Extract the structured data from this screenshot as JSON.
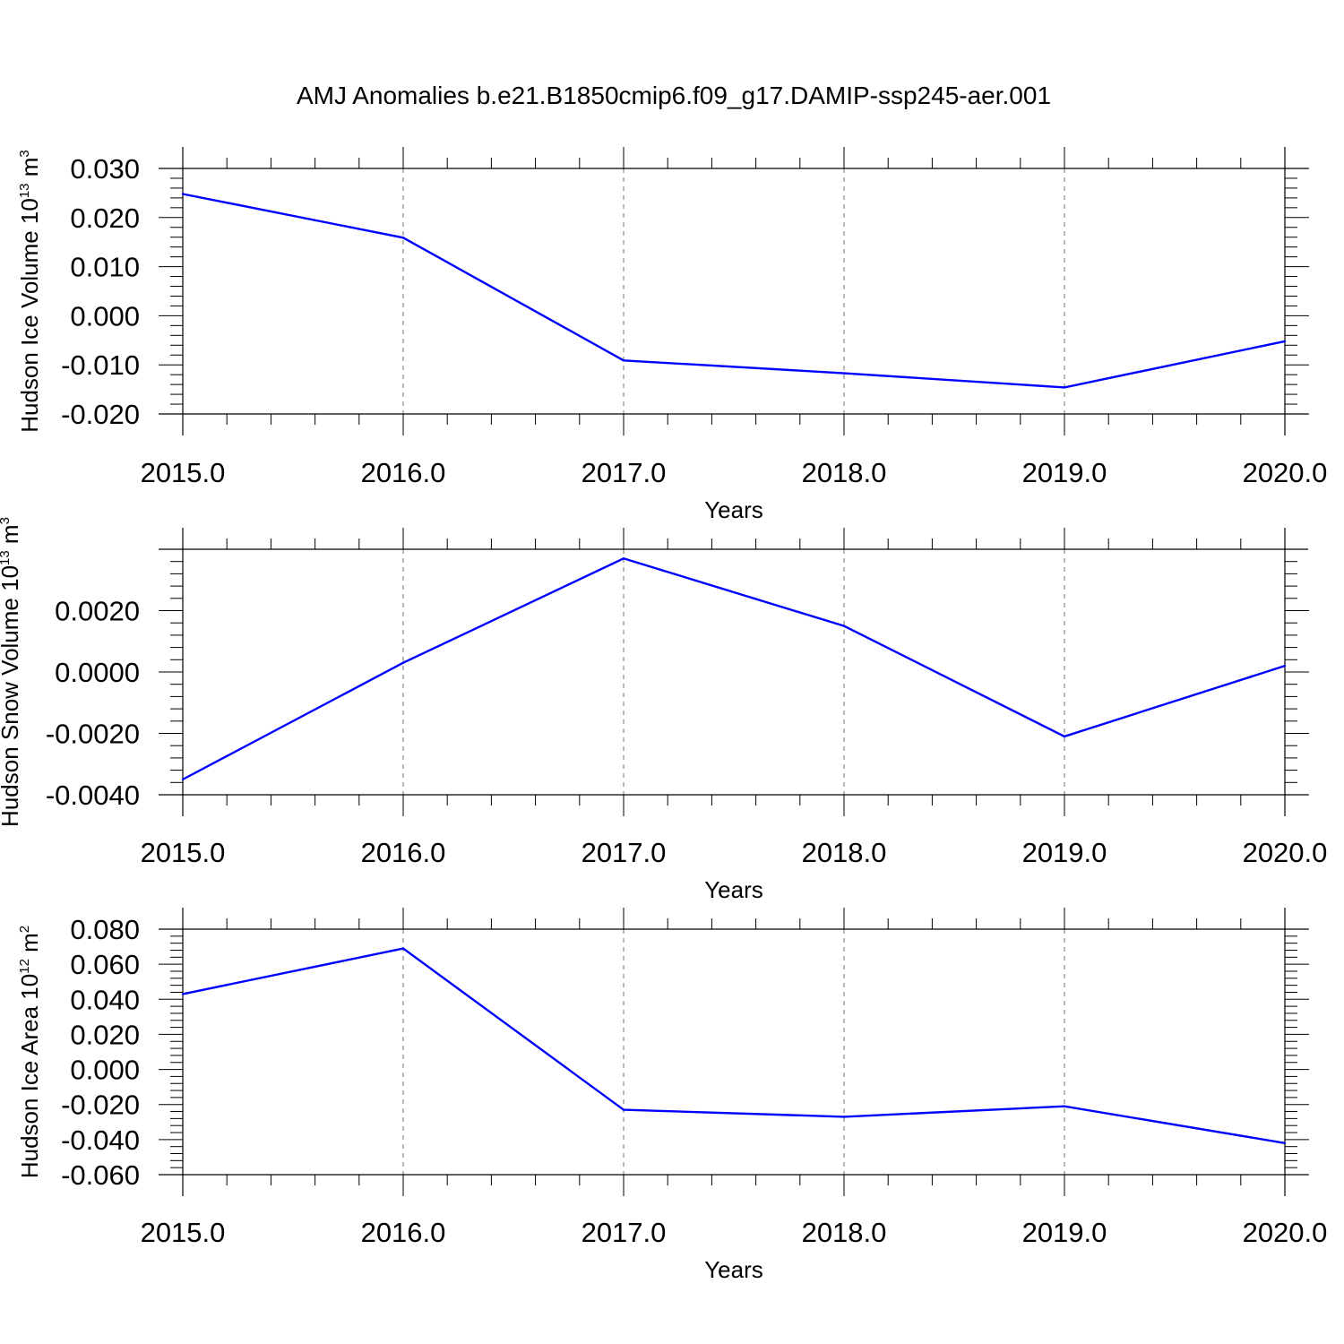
{
  "figure": {
    "title": "AMJ Anomalies b.e21.B1850cmip6.f09_g17.DAMIP-ssp245-aer.001",
    "series_color": "#0000ff"
  },
  "chart_data": [
    {
      "type": "line",
      "title": "",
      "ylabel": {
        "main": "Hudson Ice Volume 10",
        "exp": "13",
        "unit": " m",
        "unit_exp": "3"
      },
      "xlabel": "Years",
      "x": [
        2015,
        2016,
        2017,
        2018,
        2019,
        2020
      ],
      "values": [
        0.0248,
        0.0159,
        -0.0091,
        -0.0117,
        -0.0146,
        -0.0052
      ],
      "xlim": [
        2015,
        2020
      ],
      "ylim": [
        -0.02,
        0.03
      ],
      "xticks": [
        2015,
        2016,
        2017,
        2018,
        2019,
        2020
      ],
      "xtick_labels": [
        "2015.0",
        "2016.0",
        "2017.0",
        "2018.0",
        "2019.0",
        "2020.0"
      ],
      "yticks": [
        -0.02,
        -0.01,
        0.0,
        0.01,
        0.02,
        0.03
      ],
      "ytick_labels": [
        "-0.020",
        "-0.010",
        "0.000",
        "0.010",
        "0.020",
        "0.030"
      ],
      "y_minor_step": 0.002,
      "grid": "vertical dashed at major x ticks"
    },
    {
      "type": "line",
      "title": "",
      "ylabel": {
        "main": "Hudson Snow Volume 10",
        "exp": "13",
        "unit": " m",
        "unit_exp": "3"
      },
      "xlabel": "Years",
      "x": [
        2015,
        2016,
        2017,
        2018,
        2019,
        2020
      ],
      "values": [
        -0.0035,
        0.0003,
        0.0037,
        0.0015,
        -0.0021,
        0.0002
      ],
      "xlim": [
        2015,
        2020
      ],
      "ylim": [
        -0.004,
        0.004
      ],
      "xticks": [
        2015,
        2016,
        2017,
        2018,
        2019,
        2020
      ],
      "xtick_labels": [
        "2015.0",
        "2016.0",
        "2017.0",
        "2018.0",
        "2019.0",
        "2020.0"
      ],
      "yticks": [
        -0.004,
        -0.002,
        0.0,
        0.002
      ],
      "ytick_labels": [
        "-0.0040",
        "-0.0020",
        "0.0000",
        "0.0020"
      ],
      "y_minor_step": 0.0004,
      "grid": "vertical dashed at major x ticks"
    },
    {
      "type": "line",
      "title": "",
      "ylabel": {
        "main": "Hudson Ice Area 10",
        "exp": "12",
        "unit": " m",
        "unit_exp": "2"
      },
      "xlabel": "Years",
      "x": [
        2015,
        2016,
        2017,
        2018,
        2019,
        2020
      ],
      "values": [
        0.043,
        0.069,
        -0.023,
        -0.027,
        -0.021,
        -0.042
      ],
      "xlim": [
        2015,
        2020
      ],
      "ylim": [
        -0.06,
        0.08
      ],
      "xticks": [
        2015,
        2016,
        2017,
        2018,
        2019,
        2020
      ],
      "xtick_labels": [
        "2015.0",
        "2016.0",
        "2017.0",
        "2018.0",
        "2019.0",
        "2020.0"
      ],
      "yticks": [
        -0.06,
        -0.04,
        -0.02,
        0.0,
        0.02,
        0.04,
        0.06,
        0.08
      ],
      "ytick_labels": [
        "-0.060",
        "-0.040",
        "-0.020",
        "0.000",
        "0.020",
        "0.040",
        "0.060",
        "0.080"
      ],
      "y_minor_step": 0.004,
      "grid": "vertical dashed at major x ticks"
    }
  ]
}
